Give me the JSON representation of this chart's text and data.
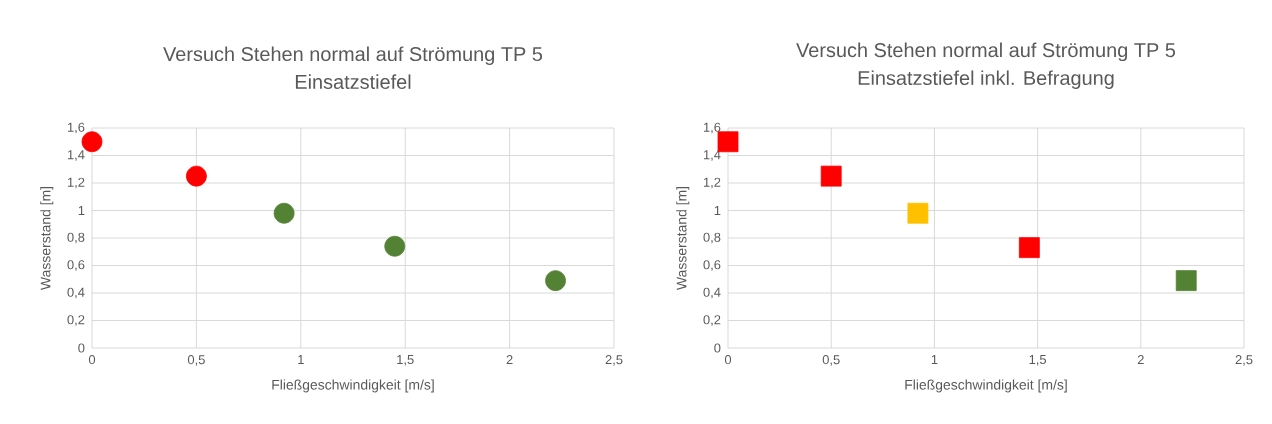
{
  "chart_data": [
    {
      "type": "scatter",
      "title": "Versuch Stehen normal auf Strömung TP 5",
      "subtitle": "Einsatzstiefel",
      "xlabel": "Fließgeschwindigkeit [m/s]",
      "ylabel": "Wasserstand [m]",
      "x": [
        0,
        0.5,
        0.92,
        1.45,
        2.22
      ],
      "values": [
        1.5,
        1.25,
        0.98,
        0.74,
        0.49
      ],
      "colors": [
        "#ff0000",
        "#ff0000",
        "#548235",
        "#548235",
        "#548235"
      ],
      "marker": "circle",
      "grid": true,
      "xlim": [
        0,
        2.5
      ],
      "ylim": [
        0,
        1.6
      ],
      "xticks": [
        0,
        {
          "value": 0.5,
          "label": "0,5"
        },
        1,
        {
          "value": 1.5,
          "label": "1,5"
        },
        2,
        {
          "value": 2.5,
          "label": "2,5"
        }
      ],
      "yticks": [
        0,
        {
          "value": 0.2,
          "label": "0,2"
        },
        {
          "value": 0.4,
          "label": "0,4"
        },
        {
          "value": 0.6,
          "label": "0,6"
        },
        {
          "value": 0.8,
          "label": "0,8"
        },
        1,
        {
          "value": 1.2,
          "label": "1,2"
        },
        {
          "value": 1.4,
          "label": "1,4"
        },
        {
          "value": 1.6,
          "label": "1,6"
        }
      ]
    },
    {
      "type": "scatter",
      "title": "Versuch Stehen normal auf Strömung TP 5",
      "subtitle": "Einsatzstiefel inkl. Befragung",
      "xlabel": "Fließgeschwindigkeit [m/s]",
      "ylabel": "Wasserstand [m]",
      "x": [
        0,
        0.5,
        0.92,
        1.46,
        2.22
      ],
      "values": [
        1.5,
        1.25,
        0.98,
        0.73,
        0.49
      ],
      "colors": [
        "#ff0000",
        "#ff0000",
        "#ffc000",
        "#ff0000",
        "#548235"
      ],
      "marker": "square",
      "grid": true,
      "xlim": [
        0,
        2.5
      ],
      "ylim": [
        0,
        1.6
      ],
      "xticks": [
        0,
        {
          "value": 0.5,
          "label": "0,5"
        },
        1,
        {
          "value": 1.5,
          "label": "1,5"
        },
        2,
        {
          "value": 2.5,
          "label": "2,5"
        }
      ],
      "yticks": [
        0,
        {
          "value": 0.2,
          "label": "0,2"
        },
        {
          "value": 0.4,
          "label": "0,4"
        },
        {
          "value": 0.6,
          "label": "0,6"
        },
        {
          "value": 0.8,
          "label": "0,8"
        },
        1,
        {
          "value": 1.2,
          "label": "1,2"
        },
        {
          "value": 1.4,
          "label": "1,4"
        },
        {
          "value": 1.6,
          "label": "1,6"
        }
      ]
    }
  ]
}
